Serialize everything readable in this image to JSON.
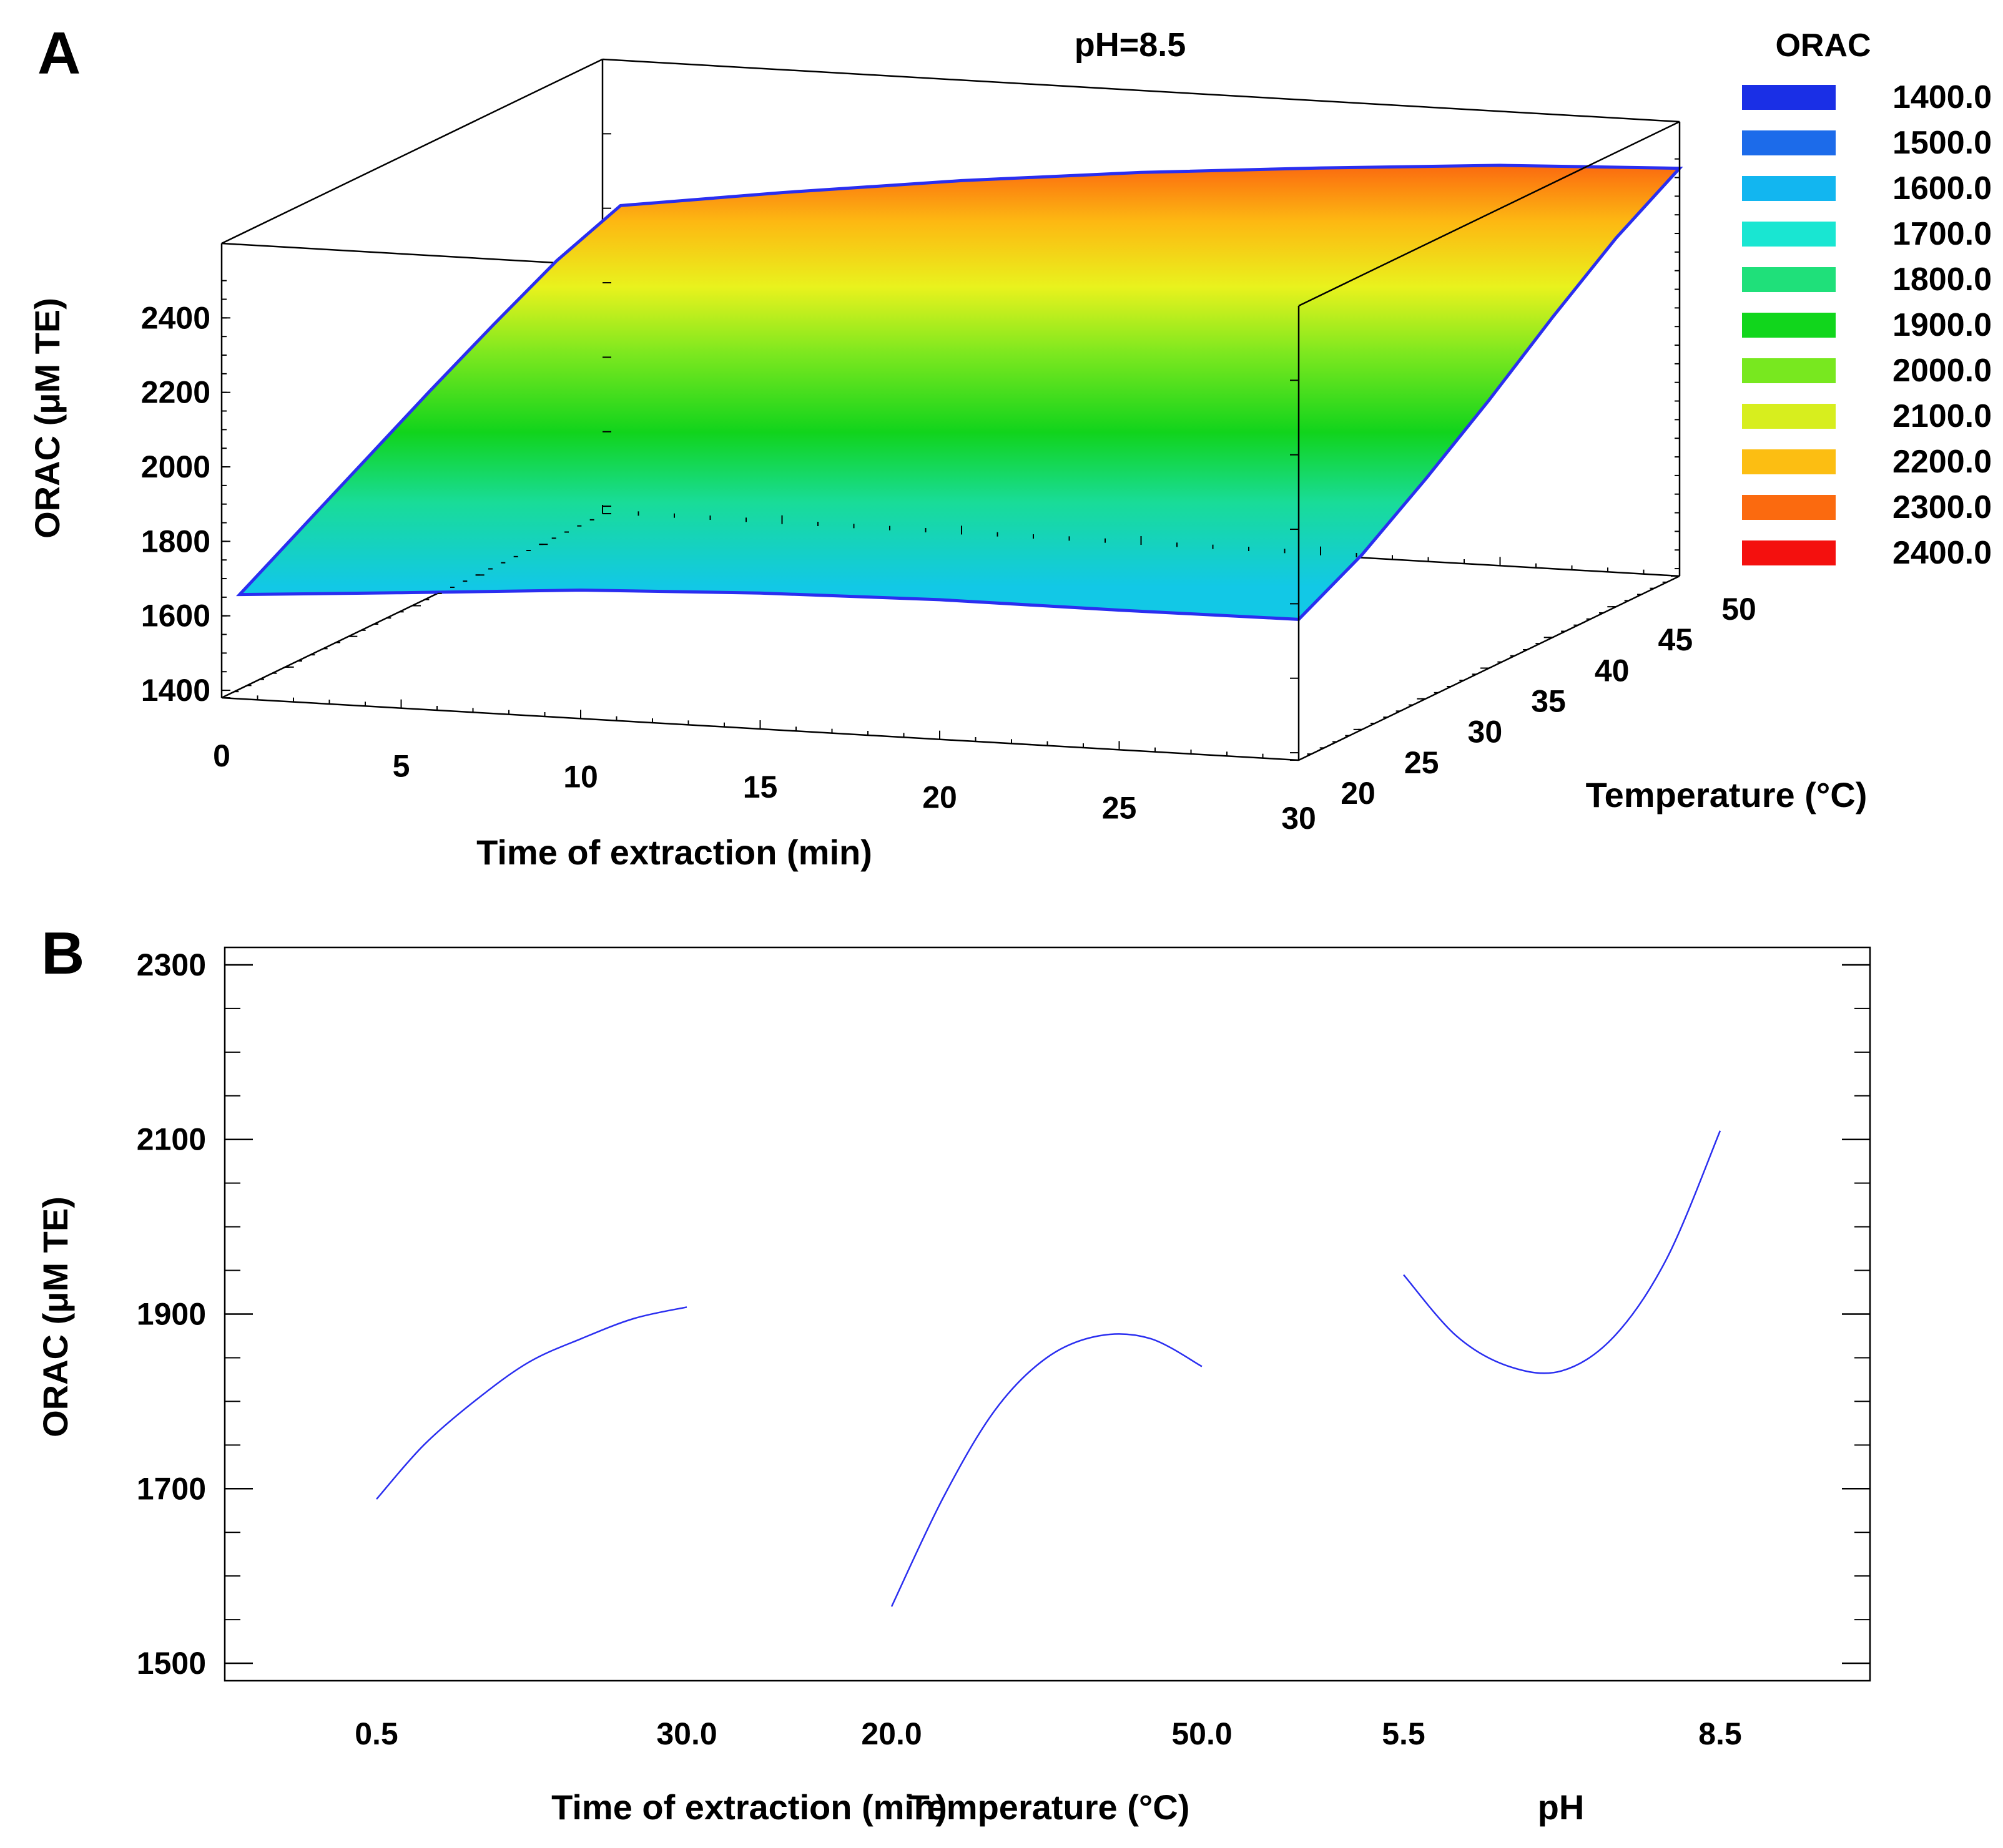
{
  "chart_data": [
    {
      "panel": "A",
      "type": "surface3d",
      "title": "pH=8.5",
      "xlabel": "Time of extraction (min)",
      "ylabel": "Temperature (°C)",
      "zlabel": "ORAC (μM TE)",
      "x_ticks": [
        "0",
        "5",
        "10",
        "15",
        "20",
        "25",
        "30"
      ],
      "y_ticks": [
        "20",
        "25",
        "30",
        "35",
        "40",
        "45",
        "50"
      ],
      "z_ticks": [
        "1400",
        "1600",
        "1800",
        "2000",
        "2200",
        "2400"
      ],
      "xlim": [
        0,
        30
      ],
      "ylim": [
        20,
        50
      ],
      "zlim": [
        1380,
        2600
      ],
      "grid_x": [
        0.5,
        5,
        10,
        15,
        20,
        25,
        30
      ],
      "grid_y": [
        20,
        25,
        30,
        35,
        40,
        45,
        50
      ],
      "surface_edges": {
        "front_temp20": [
          1660,
          1690,
          1725,
          1745,
          1755,
          1755,
          1758
        ],
        "left_time0_5": [
          1660,
          1760,
          1860,
          1960,
          2055,
          2145,
          2210
        ],
        "back_temp50": [
          2210,
          2270,
          2330,
          2380,
          2420,
          2455,
          2475
        ],
        "right_time30": [
          1758,
          1850,
          1970,
          2100,
          2240,
          2370,
          2475
        ]
      },
      "legend": {
        "title": "ORAC",
        "placement": "right",
        "entries": [
          {
            "label": "1400.0",
            "color": "#1a2fe6"
          },
          {
            "label": "1500.0",
            "color": "#1c6bea"
          },
          {
            "label": "1600.0",
            "color": "#12b6f0"
          },
          {
            "label": "1700.0",
            "color": "#19e6d2"
          },
          {
            "label": "1800.0",
            "color": "#1fe07a"
          },
          {
            "label": "1900.0",
            "color": "#11d61c"
          },
          {
            "label": "2000.0",
            "color": "#78e81f"
          },
          {
            "label": "2100.0",
            "color": "#d7ee1e"
          },
          {
            "label": "2200.0",
            "color": "#fcbe12"
          },
          {
            "label": "2300.0",
            "color": "#fb6a0f"
          },
          {
            "label": "2400.0",
            "color": "#f4100e"
          }
        ]
      }
    },
    {
      "panel": "B",
      "type": "line",
      "ylabel": "ORAC (μM TE)",
      "ylim": [
        1480,
        2320
      ],
      "y_ticks": [
        1500,
        1700,
        1900,
        2100,
        2300
      ],
      "line_color": "#2a2ef0",
      "factors": [
        {
          "name": "Time of extraction (min)",
          "xlim": [
            0.5,
            30.0
          ],
          "tick_labels": [
            "0.5",
            "30.0"
          ],
          "x": [
            0.5,
            5,
            10,
            15,
            20,
            25,
            30
          ],
          "y": [
            1688,
            1750,
            1802,
            1845,
            1872,
            1895,
            1908
          ]
        },
        {
          "name": "Temperature (°C)",
          "xlim": [
            20.0,
            50.0
          ],
          "tick_labels": [
            "20.0",
            "50.0"
          ],
          "x": [
            20,
            25,
            30,
            35,
            40,
            45,
            50
          ],
          "y": [
            1565,
            1690,
            1790,
            1850,
            1875,
            1872,
            1840
          ]
        },
        {
          "name": "pH",
          "xlim": [
            5.5,
            8.5
          ],
          "tick_labels": [
            "5.5",
            "8.5"
          ],
          "x": [
            5.5,
            6.0,
            6.5,
            7.0,
            7.5,
            8.0,
            8.5
          ],
          "y": [
            1945,
            1875,
            1840,
            1835,
            1875,
            1965,
            2110
          ]
        }
      ]
    }
  ]
}
